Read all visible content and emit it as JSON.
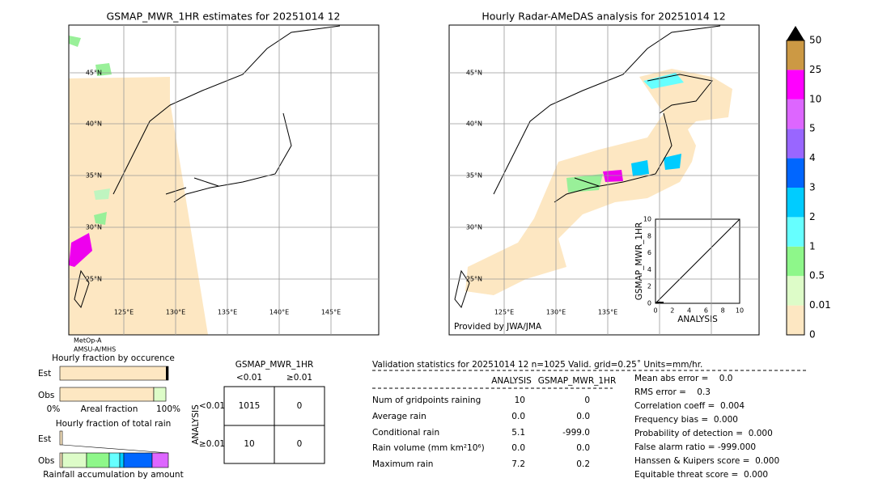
{
  "left_map": {
    "title": "GSMAP_MWR_1HR estimates for 20251014 12",
    "lat_labels": [
      "45°N",
      "40°N",
      "35°N",
      "30°N",
      "25°N"
    ],
    "lon_labels": [
      "125°E",
      "130°E",
      "135°E",
      "140°E",
      "145°E"
    ],
    "satellites": [
      "MetOp-A",
      "AMSU-A/MHS"
    ]
  },
  "right_map": {
    "title": "Hourly Radar-AMeDAS analysis for 20251014 12",
    "lat_labels": [
      "45°N",
      "40°N",
      "35°N",
      "30°N",
      "25°N"
    ],
    "lon_labels": [
      "125°E",
      "130°E",
      "135°E"
    ],
    "credit": "Provided by JWA/JMA",
    "inset": {
      "xlabel": "ANALYSIS",
      "ylabel": "GSMAP_MWR_1HR",
      "ticks": [
        0,
        2,
        4,
        6,
        8,
        10
      ]
    }
  },
  "colorbar": {
    "labels": [
      "0",
      "0.01",
      "0.5",
      "1",
      "2",
      "3",
      "4",
      "5",
      "10",
      "25",
      "50"
    ]
  },
  "fraction_occurrence": {
    "title": "Hourly fraction by occurence",
    "rows": [
      "Est",
      "Obs"
    ],
    "axis_labels": [
      "0%",
      "Areal fraction",
      "100%"
    ]
  },
  "fraction_total": {
    "title": "Hourly fraction of total rain",
    "rows": [
      "Est",
      "Obs"
    ],
    "xlabel": "Rainfall accumulation by amount"
  },
  "contingency": {
    "title": "GSMAP_MWR_1HR",
    "col_labels": [
      "<0.01",
      "≥0.01"
    ],
    "row_axis": "ANALYSIS",
    "row_labels": [
      "<0.01",
      "≥0.01"
    ],
    "cells": [
      [
        1015,
        0
      ],
      [
        10,
        0
      ]
    ]
  },
  "validation": {
    "header": "Validation statistics for 20251014 12  n=1025 Valid. grid=0.25˚ Units=mm/hr.",
    "columns": [
      "ANALYSIS",
      "GSMAP_MWR_1HR"
    ],
    "rows": [
      [
        "Num of gridpoints raining",
        "10",
        "0"
      ],
      [
        "Average rain",
        "0.0",
        "0.0"
      ],
      [
        "Conditional rain",
        "5.1",
        "-999.0"
      ],
      [
        "Rain volume (mm km²10⁶)",
        "0.0",
        "0.0"
      ],
      [
        "Maximum rain",
        "7.2",
        "0.2"
      ]
    ],
    "scores": [
      "Mean abs error =    0.0",
      "RMS error =    0.3",
      "Correlation coeff =  0.004",
      "Frequency bias =  0.000",
      "Probability of detection =  0.000",
      "False alarm ratio = -999.000",
      "Hanssen & Kuipers score =  0.000",
      "Equitable threat score =  0.000"
    ]
  }
}
